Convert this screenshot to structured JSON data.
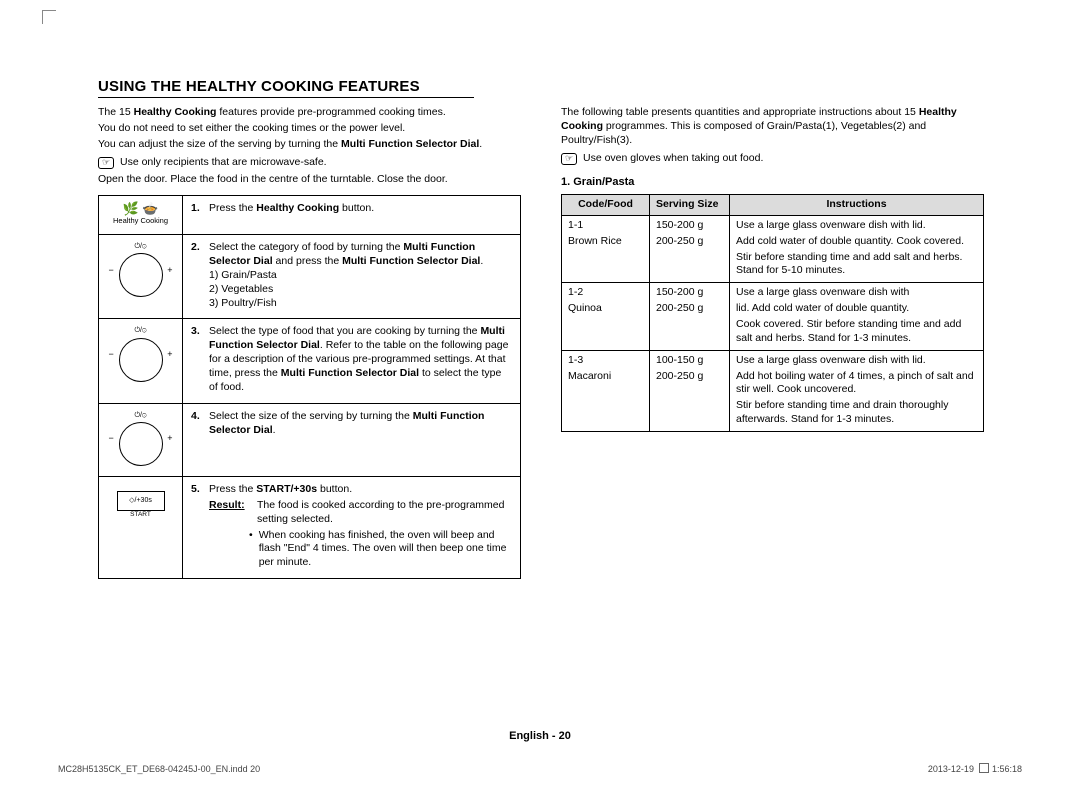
{
  "heading": "USING THE HEALTHY COOKING FEATURES",
  "left": {
    "intro_a": "The 15 ",
    "intro_b": "Healthy Cooking",
    "intro_c": " features provide pre-programmed cooking times.",
    "intro2": "You do not need to set either the cooking times or the power level.",
    "intro3_a": "You can adjust the size of the serving by turning the ",
    "intro3_b": "Multi Function Selector Dial",
    "intro3_c": ".",
    "note": "Use only recipients that are microwave-safe.",
    "open": "Open the door. Place the food in the centre of the turntable. Close the door.",
    "hc_label": "Healthy Cooking",
    "step1_a": "Press the ",
    "step1_b": "Healthy Cooking",
    "step1_c": " button.",
    "step2_a": "Select the category of food by turning the ",
    "step2_b": "Multi Function Selector Dial",
    "step2_c": " and press the ",
    "step2_d": "Multi Function Selector Dial",
    "step2_e": ".",
    "step2_l1": "1) Grain/Pasta",
    "step2_l2": "2) Vegetables",
    "step2_l3": "3) Poultry/Fish",
    "step3_a": "Select the type of food that you are cooking by turning the ",
    "step3_b": "Multi Function Selector Dial",
    "step3_c": ". Refer to the table on the following page for a description of the various pre-programmed settings. At that time, press the ",
    "step3_d": "Multi Function Selector Dial",
    "step3_e": " to select the type of food.",
    "step4_a": "Select the size of the serving by turning the ",
    "step4_b": "Multi Function Selector Dial",
    "step4_c": ".",
    "step5_a": "Press the ",
    "step5_b": "START/+30s",
    "step5_c": " button.",
    "result_lbl": "Result:",
    "result_txt": "The food is cooked according to the pre-programmed setting selected.",
    "bullet": "When cooking has finished, the oven will beep and flash \"End\" 4 times. The oven will then beep one time per minute.",
    "start_btn": "◇/+30s",
    "start_lbl": "START"
  },
  "right": {
    "intro_a": "The following table presents quantities and appropriate instructions about 15 ",
    "intro_b": "Healthy Cooking",
    "intro_c": " programmes. This is composed of Grain/Pasta(1), Vegetables(2) and Poultry/Fish(3).",
    "note": "Use oven gloves when taking out food.",
    "section": "1. Grain/Pasta",
    "th1": "Code/Food",
    "th2": "Serving Size",
    "th3": "Instructions",
    "rows": [
      {
        "code": "1-1",
        "food": "Brown Rice",
        "s1": "150-200 g",
        "s2": "200-250 g",
        "i1": "Use a large glass ovenware dish with lid.",
        "i2": "Add cold water of double quantity. Cook covered.",
        "i3": "Stir before standing time and add salt and herbs. Stand for 5-10 minutes."
      },
      {
        "code": "1-2",
        "food": "Quinoa",
        "s1": "150-200 g",
        "s2": "200-250 g",
        "i1": "Use a large glass ovenware dish with",
        "i2": "lid. Add cold water of double quantity.",
        "i3": "Cook covered. Stir before standing time and add salt and herbs. Stand for 1-3 minutes."
      },
      {
        "code": "1-3",
        "food": "Macaroni",
        "s1": "100-150 g",
        "s2": "200-250 g",
        "i1": "Use a large glass ovenware dish with lid.",
        "i2": "Add hot boiling water of 4 times, a pinch of salt and stir well. Cook uncovered.",
        "i3": "Stir before standing time and drain thoroughly afterwards. Stand for 1-3 minutes."
      }
    ]
  },
  "footer": {
    "center": "English - 20",
    "left": "MC28H5135CK_ET_DE68-04245J-00_EN.indd   20",
    "right_date": "2013-12-19",
    "right_time": "1:56:18"
  }
}
